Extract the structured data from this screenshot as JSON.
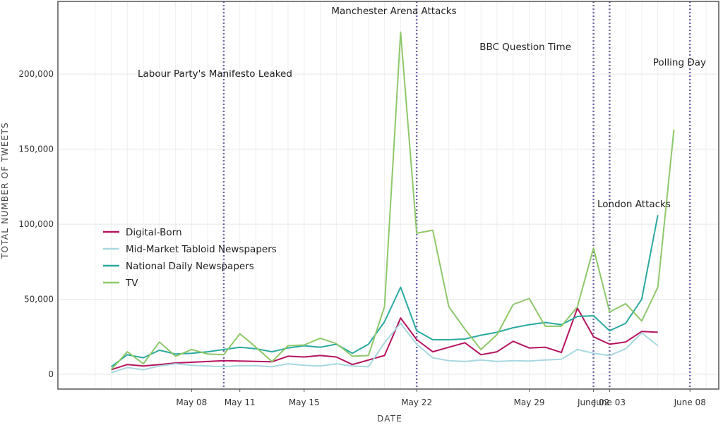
{
  "chart_data": {
    "type": "line",
    "xlabel": "DATE",
    "ylabel": "TOTAL NUMBER OF TWEETS",
    "ylim": [
      0,
      240000
    ],
    "xlim": [
      "2017-05-01",
      "2017-06-09"
    ],
    "grid": "vertical and horizontal, light",
    "legend_position": "middle-left",
    "x_ticks": [
      {
        "date": "2017-05-08",
        "label": "May 08"
      },
      {
        "date": "2017-05-11",
        "label": "May 11"
      },
      {
        "date": "2017-05-15",
        "label": "May 15"
      },
      {
        "date": "2017-05-22",
        "label": "May 22"
      },
      {
        "date": "2017-05-29",
        "label": "May 29"
      },
      {
        "date": "2017-06-02",
        "label": "June 02"
      },
      {
        "date": "2017-06-03",
        "label": "June 03"
      },
      {
        "date": "2017-06-08",
        "label": "June 08"
      }
    ],
    "y_ticks": [
      {
        "value": 0,
        "label": "0"
      },
      {
        "value": 50000,
        "label": "50,000"
      },
      {
        "value": 100000,
        "label": "100,000"
      },
      {
        "value": 150000,
        "label": "150,000"
      },
      {
        "value": 200000,
        "label": "200,000"
      }
    ],
    "x": [
      "2017-05-03",
      "2017-05-04",
      "2017-05-05",
      "2017-05-06",
      "2017-05-07",
      "2017-05-08",
      "2017-05-09",
      "2017-05-10",
      "2017-05-11",
      "2017-05-12",
      "2017-05-13",
      "2017-05-14",
      "2017-05-15",
      "2017-05-16",
      "2017-05-17",
      "2017-05-18",
      "2017-05-19",
      "2017-05-20",
      "2017-05-21",
      "2017-05-22",
      "2017-05-23",
      "2017-05-24",
      "2017-05-25",
      "2017-05-26",
      "2017-05-27",
      "2017-05-28",
      "2017-05-29",
      "2017-05-30",
      "2017-05-31",
      "2017-06-01",
      "2017-06-02",
      "2017-06-03",
      "2017-06-04",
      "2017-06-05",
      "2017-06-06",
      "2017-06-07",
      "2017-06-08",
      "2017-06-09"
    ],
    "series": [
      {
        "name": "Digital-Born",
        "color": "#b5135f",
        "values": [
          3000,
          6500,
          5500,
          6500,
          7500,
          8000,
          8500,
          9000,
          8800,
          8600,
          8300,
          12000,
          11500,
          12500,
          11500,
          6500,
          9500,
          12500,
          37500,
          23000,
          15000,
          18000,
          21000,
          13000,
          15000,
          22000,
          17500,
          18000,
          14500,
          44000,
          25000,
          20000,
          21500,
          28500,
          28000,
          null,
          null,
          null
        ]
      },
      {
        "name": "Mid-Market Tabloid Newspapers",
        "color": "#a8d8e0",
        "values": [
          1000,
          4500,
          3000,
          5500,
          7000,
          6000,
          5500,
          5000,
          5800,
          5700,
          5000,
          7000,
          6000,
          5500,
          7000,
          5500,
          5000,
          21000,
          34000,
          20000,
          11000,
          9000,
          8500,
          9500,
          8500,
          9000,
          8800,
          9500,
          10000,
          16500,
          14000,
          12500,
          17000,
          27500,
          19000,
          null,
          null,
          null
        ]
      },
      {
        "name": "National Daily Newspapers",
        "color": "#2aa9a0",
        "values": [
          5000,
          13000,
          11000,
          16000,
          13500,
          14000,
          15000,
          16500,
          18000,
          17000,
          15000,
          17500,
          19000,
          18000,
          20000,
          14000,
          20000,
          35000,
          58000,
          29000,
          23000,
          23000,
          23500,
          26000,
          28000,
          31000,
          33000,
          34500,
          33000,
          38500,
          39000,
          29000,
          34000,
          50000,
          106000,
          null,
          null,
          null
        ]
      },
      {
        "name": "TV",
        "color": "#8ec86a",
        "values": [
          3000,
          15000,
          7000,
          21500,
          12000,
          16500,
          13500,
          13000,
          27000,
          18000,
          8500,
          19000,
          19500,
          24000,
          20500,
          12000,
          12500,
          45000,
          228000,
          94000,
          96000,
          45000,
          30000,
          16500,
          26500,
          46500,
          50500,
          32000,
          32000,
          45000,
          84000,
          41500,
          47000,
          35500,
          58000,
          163000,
          null,
          null
        ]
      }
    ],
    "annotations": [
      {
        "label": "Labour Party's  Manifesto Leaked",
        "date": "2017-05-10"
      },
      {
        "label": "Manchester  Arena Attacks",
        "date": "2017-05-22"
      },
      {
        "label": "BBC Question Time",
        "date": "2017-06-02"
      },
      {
        "label": "London Attacks",
        "date": "2017-06-03"
      },
      {
        "label": "Polling Day",
        "date": "2017-06-08"
      }
    ]
  }
}
